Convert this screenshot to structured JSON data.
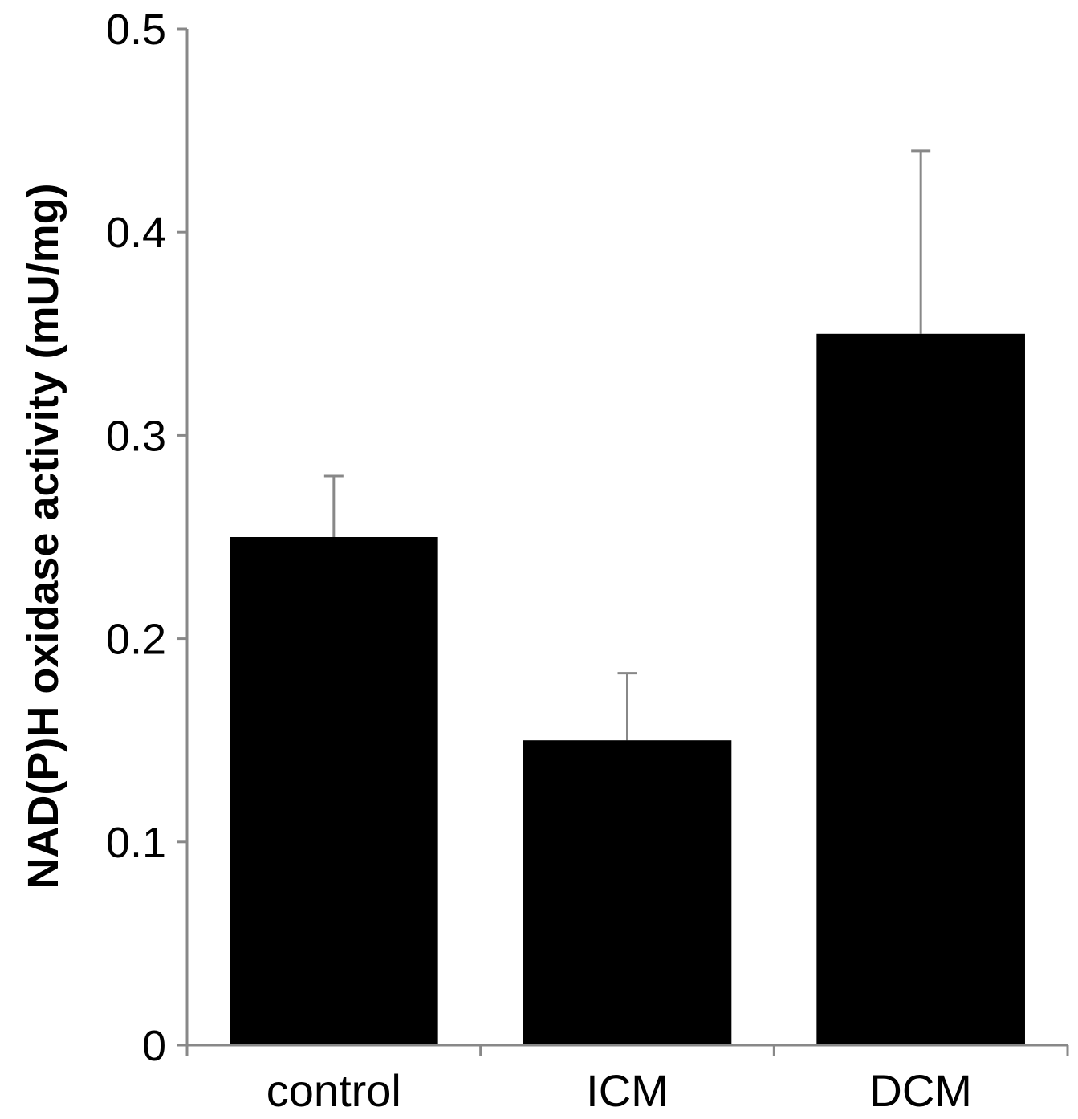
{
  "chart_data": {
    "type": "bar",
    "title": "",
    "xlabel": "",
    "ylabel": "NAD(P)H oxidase activity (mU/mg)",
    "categories": [
      "control",
      "ICM",
      "DCM"
    ],
    "values": [
      0.25,
      0.15,
      0.35
    ],
    "error_upper": [
      0.28,
      0.183,
      0.44
    ],
    "ylim": [
      0,
      0.5
    ],
    "yticks": [
      0,
      0.1,
      0.2,
      0.3,
      0.4,
      0.5
    ],
    "ytick_labels": [
      "0",
      "0.1",
      "0.2",
      "0.3",
      "0.4",
      "0.5"
    ],
    "grid": false,
    "bar_color": "#000000",
    "axis_color": "#888888"
  }
}
